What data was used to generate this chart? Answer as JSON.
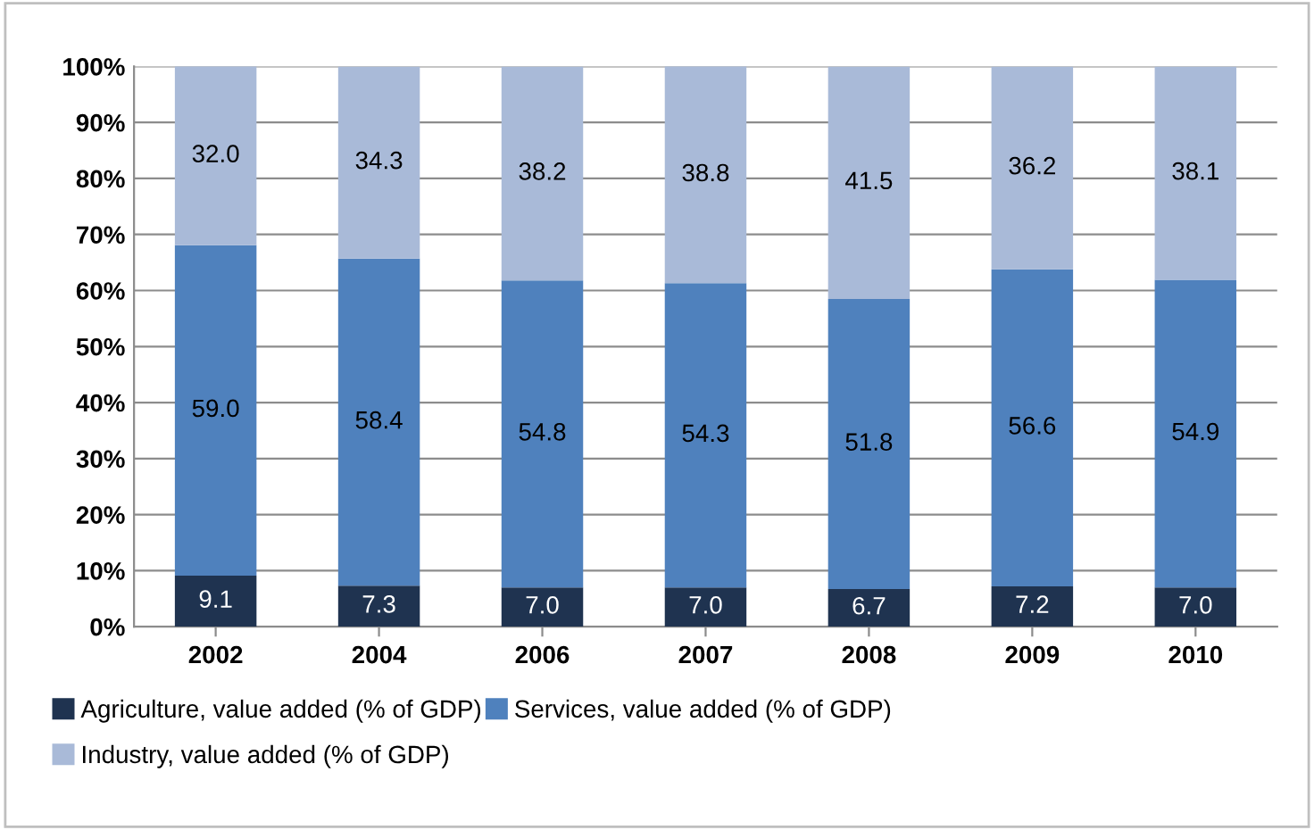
{
  "chart_data": {
    "type": "bar",
    "stacked": true,
    "categories": [
      "2002",
      "2004",
      "2006",
      "2007",
      "2008",
      "2009",
      "2010"
    ],
    "series": [
      {
        "name": "Agriculture, value added (% of GDP)",
        "color": "#1f3350",
        "values": [
          9.1,
          7.3,
          7.0,
          7.0,
          6.7,
          7.2,
          7.0
        ],
        "value_labels": [
          "9.1",
          "7.3",
          "7.0",
          "7.0",
          "6.7",
          "7.2",
          "7.0"
        ]
      },
      {
        "name": "Services, value added (% of GDP)",
        "color": "#4f81bd",
        "values": [
          59.0,
          58.4,
          54.8,
          54.3,
          51.8,
          56.6,
          54.9
        ],
        "value_labels": [
          "59.0",
          "58.4",
          "54.8",
          "54.3",
          "51.8",
          "56.6",
          "54.9"
        ]
      },
      {
        "name": "Industry, value added (% of GDP)",
        "color": "#a9bad8",
        "values": [
          32.0,
          34.3,
          38.2,
          38.8,
          41.5,
          36.2,
          38.1
        ],
        "value_labels": [
          "32.0",
          "34.3",
          "38.2",
          "38.8",
          "41.5",
          "36.2",
          "38.1"
        ]
      }
    ],
    "ylim": [
      0,
      100
    ],
    "yticks": [
      {
        "value": 0,
        "label": "0%"
      },
      {
        "value": 10,
        "label": "10%"
      },
      {
        "value": 20,
        "label": "20%"
      },
      {
        "value": 30,
        "label": "30%"
      },
      {
        "value": 40,
        "label": "40%"
      },
      {
        "value": 50,
        "label": "50%"
      },
      {
        "value": 60,
        "label": "60%"
      },
      {
        "value": 70,
        "label": "70%"
      },
      {
        "value": 80,
        "label": "80%"
      },
      {
        "value": 90,
        "label": "90%"
      },
      {
        "value": 100,
        "label": "100%"
      }
    ],
    "grid": "y",
    "legend": "bottom"
  }
}
